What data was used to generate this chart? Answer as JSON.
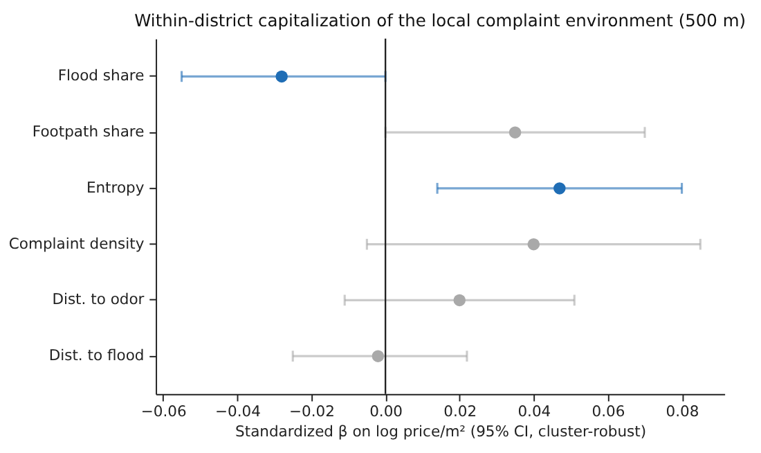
{
  "chart_data": {
    "type": "scatter",
    "orientation": "horizontal",
    "title": "Within-district capitalization of the local complaint environment (500 m)",
    "xlabel": "Standardized β on log price/m²  (95% CI, cluster-robust)",
    "categories": [
      "Flood share",
      "Footpath share",
      "Entropy",
      "Complaint density",
      "Dist. to odor",
      "Dist. to flood"
    ],
    "values": [
      -0.028,
      0.035,
      0.047,
      0.04,
      0.02,
      -0.002
    ],
    "errors": [
      [
        -0.055,
        0.0
      ],
      [
        0.0,
        0.07
      ],
      [
        0.014,
        0.08
      ],
      [
        -0.005,
        0.085
      ],
      [
        -0.011,
        0.051
      ],
      [
        -0.025,
        0.022
      ]
    ],
    "colors": [
      "#1f6db5",
      "#a9a9a9",
      "#1f6db5",
      "#a9a9a9",
      "#a9a9a9",
      "#a9a9a9"
    ],
    "xlim": [
      -0.062,
      0.0915
    ],
    "xticks": [
      {
        "value": -0.06,
        "label": "−0.06"
      },
      {
        "value": -0.04,
        "label": "−0.04"
      },
      {
        "value": -0.02,
        "label": "−0.02"
      },
      {
        "value": 0,
        "label": "0.00"
      },
      {
        "value": 0.02,
        "label": "0.02"
      },
      {
        "value": 0.04,
        "label": "0.04"
      },
      {
        "value": 0.06,
        "label": "0.06"
      },
      {
        "value": 0.08,
        "label": "0.08"
      }
    ],
    "ref_lines": [
      {
        "axis": "x",
        "value": 0,
        "color": "#222222"
      }
    ],
    "marker": "circle",
    "grid": false
  }
}
